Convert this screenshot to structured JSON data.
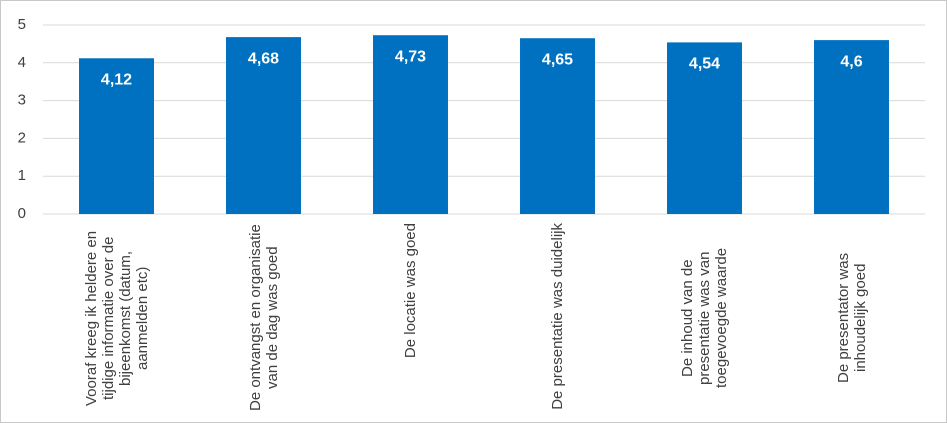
{
  "chart_data": {
    "type": "bar",
    "categories": [
      "Vooraf kreeg ik heldere en tijdige informatie over de bijeenkomst (datum, aanmelden etc)",
      "De ontvangst en organisatie van de dag was goed",
      "De locatie was goed",
      "De presentatie was duidelijk",
      "De inhoud van de presentatie was van toegevoegde waarde",
      "De presentator was inhoudelijk goed"
    ],
    "values": [
      4.12,
      4.68,
      4.73,
      4.65,
      4.54,
      4.6
    ],
    "value_labels": [
      "4,12",
      "4,68",
      "4,73",
      "4,65",
      "4,54",
      "4,6"
    ],
    "color": "#0070c0",
    "ylim": [
      0,
      5
    ],
    "yticks": [
      0,
      1,
      2,
      3,
      4,
      5
    ],
    "grid": true
  }
}
